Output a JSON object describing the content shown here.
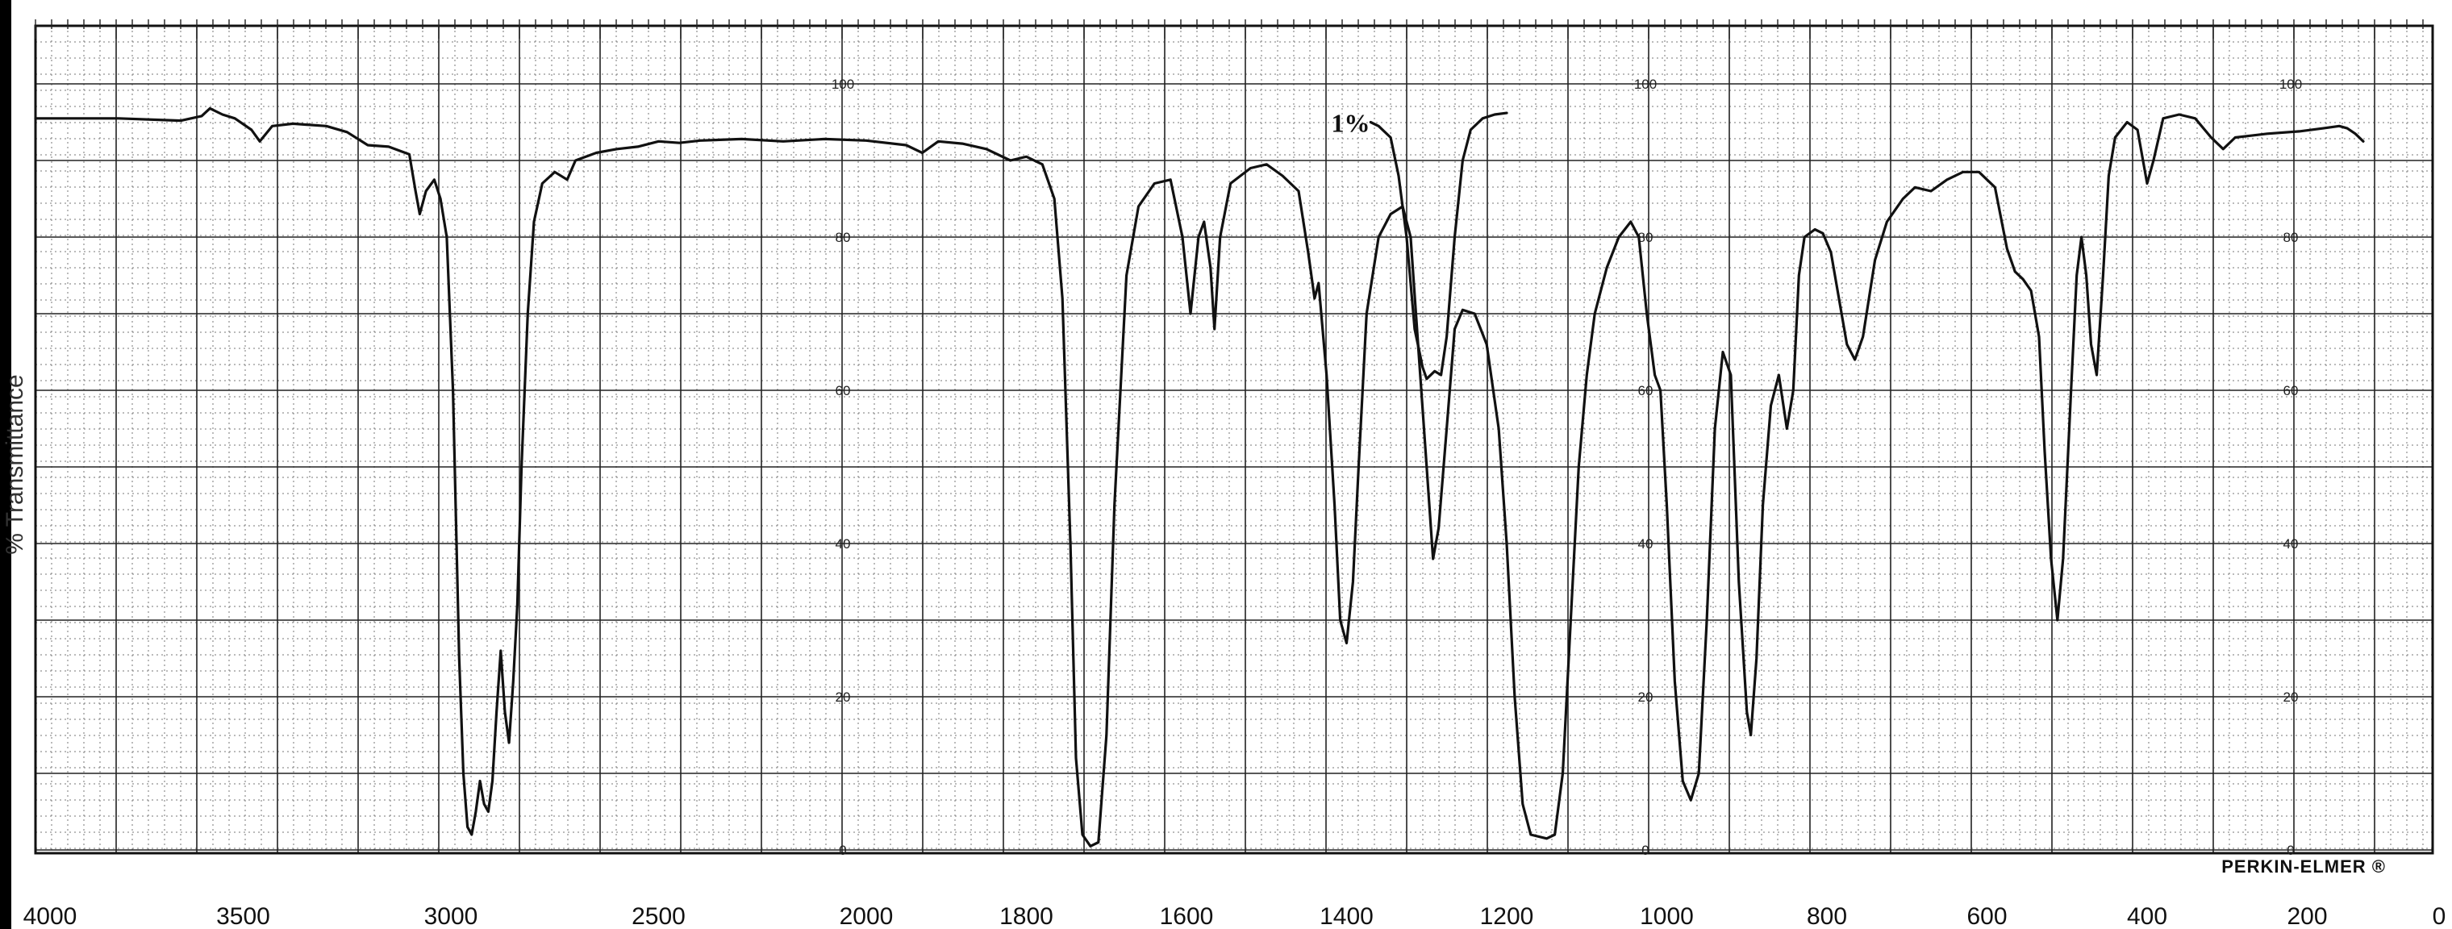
{
  "chart_data": {
    "type": "line",
    "ylabel": "% Transmittance",
    "brand": "PERKIN-ELMER ®",
    "annotation": {
      "text": "1%",
      "x": 1395,
      "y": 95
    },
    "xlim": [
      4000,
      0
    ],
    "ylim": [
      0,
      100
    ],
    "x_ticks": [
      "4000",
      "3500",
      "3000",
      "2500",
      "2000",
      "1800",
      "1600",
      "1400",
      "1200",
      "1000",
      "800",
      "600",
      "400",
      "200",
      "0"
    ],
    "inner_y_labels": [
      "100",
      "80",
      "60",
      "40",
      "20",
      "0"
    ],
    "grid": true,
    "segments": [
      {
        "name": "",
        "points": [
          [
            4000,
            95.5
          ],
          [
            3800,
            95.5
          ],
          [
            3650,
            95.2
          ],
          [
            3600,
            95.8
          ],
          [
            3580,
            96.8
          ],
          [
            3550,
            96
          ],
          [
            3520,
            95.5
          ],
          [
            3480,
            94
          ],
          [
            3460,
            92.5
          ],
          [
            3430,
            94.5
          ],
          [
            3380,
            94.8
          ],
          [
            3300,
            94.5
          ],
          [
            3250,
            93.7
          ],
          [
            3200,
            92
          ],
          [
            3150,
            91.8
          ],
          [
            3100,
            90.8
          ],
          [
            3085,
            86
          ],
          [
            3075,
            83
          ],
          [
            3060,
            86
          ],
          [
            3040,
            87.5
          ],
          [
            3025,
            85
          ],
          [
            3010,
            80
          ],
          [
            2995,
            60
          ],
          [
            2980,
            25
          ],
          [
            2970,
            10
          ],
          [
            2960,
            3
          ],
          [
            2950,
            2
          ],
          [
            2940,
            5
          ],
          [
            2930,
            9
          ],
          [
            2920,
            6
          ],
          [
            2910,
            5
          ],
          [
            2900,
            9
          ],
          [
            2890,
            18
          ],
          [
            2880,
            26
          ],
          [
            2870,
            18
          ],
          [
            2860,
            14
          ],
          [
            2850,
            22
          ],
          [
            2840,
            32
          ],
          [
            2830,
            50
          ],
          [
            2815,
            70
          ],
          [
            2800,
            82
          ],
          [
            2780,
            87
          ],
          [
            2750,
            88.5
          ],
          [
            2720,
            87.5
          ],
          [
            2700,
            90
          ],
          [
            2650,
            91
          ],
          [
            2600,
            91.5
          ],
          [
            2550,
            91.8
          ],
          [
            2500,
            92.5
          ],
          [
            2450,
            92.3
          ],
          [
            2400,
            92.6
          ],
          [
            2300,
            92.8
          ],
          [
            2200,
            92.5
          ],
          [
            2100,
            92.8
          ],
          [
            2000,
            92.6
          ],
          [
            1950,
            92
          ],
          [
            1930,
            91
          ],
          [
            1910,
            92.5
          ],
          [
            1880,
            92.2
          ],
          [
            1850,
            91.5
          ],
          [
            1820,
            90
          ],
          [
            1800,
            90.5
          ],
          [
            1780,
            89.5
          ],
          [
            1765,
            85
          ],
          [
            1755,
            72
          ],
          [
            1745,
            40
          ],
          [
            1738,
            12
          ],
          [
            1730,
            2
          ],
          [
            1720,
            0.5
          ],
          [
            1710,
            1
          ],
          [
            1700,
            15
          ],
          [
            1690,
            45
          ],
          [
            1675,
            75
          ],
          [
            1660,
            84
          ],
          [
            1640,
            87
          ],
          [
            1620,
            87.5
          ],
          [
            1605,
            80
          ],
          [
            1595,
            70
          ],
          [
            1585,
            80
          ],
          [
            1578,
            82
          ],
          [
            1570,
            76
          ],
          [
            1565,
            68
          ],
          [
            1558,
            80
          ],
          [
            1545,
            87
          ],
          [
            1520,
            89
          ],
          [
            1500,
            89.5
          ],
          [
            1480,
            88
          ],
          [
            1460,
            86
          ],
          [
            1448,
            78
          ],
          [
            1440,
            72
          ],
          [
            1435,
            74
          ],
          [
            1425,
            62
          ],
          [
            1415,
            45
          ],
          [
            1408,
            30
          ],
          [
            1400,
            27
          ],
          [
            1392,
            35
          ],
          [
            1385,
            50
          ],
          [
            1375,
            70
          ],
          [
            1360,
            80
          ],
          [
            1345,
            83
          ],
          [
            1330,
            84
          ],
          [
            1320,
            80
          ],
          [
            1310,
            65
          ],
          [
            1300,
            50
          ],
          [
            1292,
            38
          ],
          [
            1285,
            42
          ],
          [
            1275,
            55
          ],
          [
            1265,
            68
          ],
          [
            1255,
            70.5
          ],
          [
            1240,
            70
          ],
          [
            1225,
            66
          ],
          [
            1210,
            55
          ],
          [
            1200,
            40
          ],
          [
            1190,
            20
          ],
          [
            1180,
            6
          ],
          [
            1170,
            2
          ],
          [
            1150,
            1.5
          ],
          [
            1140,
            2
          ],
          [
            1130,
            10
          ],
          [
            1120,
            30
          ],
          [
            1110,
            50
          ],
          [
            1100,
            62
          ],
          [
            1090,
            70
          ],
          [
            1075,
            76
          ],
          [
            1060,
            80
          ],
          [
            1045,
            82
          ],
          [
            1035,
            80
          ],
          [
            1025,
            70
          ],
          [
            1015,
            62
          ],
          [
            1008,
            60
          ],
          [
            1000,
            45
          ],
          [
            990,
            22
          ],
          [
            980,
            9
          ],
          [
            970,
            6.5
          ],
          [
            960,
            10
          ],
          [
            950,
            30
          ],
          [
            940,
            55
          ],
          [
            930,
            65
          ],
          [
            920,
            62
          ],
          [
            910,
            35
          ],
          [
            900,
            18
          ],
          [
            895,
            15
          ],
          [
            888,
            25
          ],
          [
            880,
            45
          ],
          [
            870,
            58
          ],
          [
            860,
            62
          ],
          [
            850,
            55
          ],
          [
            842,
            60
          ],
          [
            835,
            75
          ],
          [
            828,
            80
          ],
          [
            815,
            81
          ],
          [
            805,
            80.5
          ],
          [
            795,
            78
          ],
          [
            785,
            72
          ],
          [
            775,
            66
          ],
          [
            765,
            64
          ],
          [
            755,
            67
          ],
          [
            740,
            77
          ],
          [
            725,
            82
          ],
          [
            705,
            85
          ],
          [
            690,
            86.5
          ],
          [
            670,
            86
          ],
          [
            650,
            87.5
          ],
          [
            630,
            88.5
          ],
          [
            610,
            88.5
          ],
          [
            590,
            86.5
          ],
          [
            575,
            78.5
          ],
          [
            565,
            75.5
          ],
          [
            555,
            74.5
          ],
          [
            545,
            73
          ],
          [
            535,
            67
          ],
          [
            528,
            52
          ],
          [
            520,
            38
          ],
          [
            512,
            30
          ],
          [
            505,
            38
          ],
          [
            495,
            60
          ],
          [
            488,
            75
          ],
          [
            482,
            80
          ],
          [
            476,
            75
          ],
          [
            470,
            66
          ],
          [
            463,
            62
          ],
          [
            455,
            75
          ],
          [
            448,
            88
          ],
          [
            440,
            93
          ],
          [
            425,
            95
          ],
          [
            412,
            94
          ],
          [
            400,
            87
          ],
          [
            392,
            90
          ],
          [
            380,
            95.5
          ],
          [
            360,
            96
          ],
          [
            340,
            95.5
          ],
          [
            320,
            93
          ],
          [
            305,
            91.5
          ],
          [
            290,
            93
          ],
          [
            250,
            93.5
          ],
          [
            210,
            93.8
          ],
          [
            180,
            94.2
          ],
          [
            160,
            94.5
          ],
          [
            150,
            94.2
          ],
          [
            140,
            93.5
          ],
          [
            130,
            92.5
          ]
        ]
      },
      {
        "name": "",
        "points": [
          [
            1370,
            95
          ],
          [
            1360,
            94.5
          ],
          [
            1345,
            93
          ],
          [
            1335,
            88
          ],
          [
            1325,
            80
          ],
          [
            1315,
            68
          ],
          [
            1305,
            63
          ],
          [
            1300,
            61.5
          ],
          [
            1290,
            62.5
          ],
          [
            1282,
            62
          ],
          [
            1275,
            67
          ],
          [
            1265,
            80
          ],
          [
            1255,
            90
          ],
          [
            1245,
            94
          ],
          [
            1230,
            95.5
          ],
          [
            1215,
            96
          ],
          [
            1200,
            96.2
          ]
        ]
      }
    ]
  }
}
